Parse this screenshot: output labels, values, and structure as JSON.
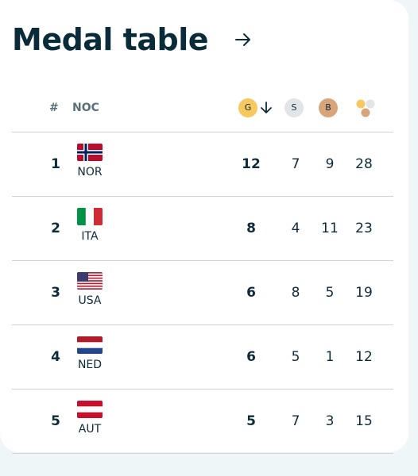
{
  "title": "Medal table",
  "header": {
    "rank": "#",
    "noc": "NOC",
    "gold": "G",
    "silver": "S",
    "bronze": "B"
  },
  "colors": {
    "gold": "#f7c95e",
    "silver": "#e2e5e8",
    "bronze": "#d8a57b",
    "text": "#0d2b3a"
  },
  "rows": [
    {
      "rank": "1",
      "noc": "NOR",
      "flag": "norway-flag",
      "gold": "12",
      "silver": "7",
      "bronze": "9",
      "total": "28"
    },
    {
      "rank": "2",
      "noc": "ITA",
      "flag": "italy-flag",
      "gold": "8",
      "silver": "4",
      "bronze": "11",
      "total": "23"
    },
    {
      "rank": "3",
      "noc": "USA",
      "flag": "usa-flag",
      "gold": "6",
      "silver": "8",
      "bronze": "5",
      "total": "19"
    },
    {
      "rank": "4",
      "noc": "NED",
      "flag": "netherlands-flag",
      "gold": "6",
      "silver": "5",
      "bronze": "1",
      "total": "12"
    },
    {
      "rank": "5",
      "noc": "AUT",
      "flag": "austria-flag",
      "gold": "5",
      "silver": "7",
      "bronze": "3",
      "total": "15"
    }
  ]
}
